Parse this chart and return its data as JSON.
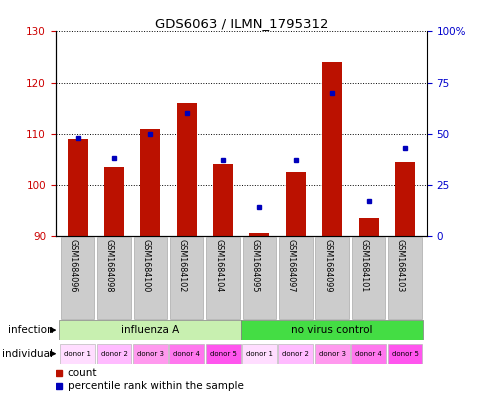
{
  "title": "GDS6063 / ILMN_1795312",
  "samples": [
    "GSM1684096",
    "GSM1684098",
    "GSM1684100",
    "GSM1684102",
    "GSM1684104",
    "GSM1684095",
    "GSM1684097",
    "GSM1684099",
    "GSM1684101",
    "GSM1684103"
  ],
  "count_values": [
    109,
    103.5,
    111,
    116,
    104,
    90.5,
    102.5,
    124,
    93.5,
    104.5
  ],
  "percentile_values": [
    48,
    38,
    50,
    60,
    37,
    14,
    37,
    70,
    17,
    43
  ],
  "ylim_left": [
    90,
    130
  ],
  "ylim_right": [
    0,
    100
  ],
  "yticks_left": [
    90,
    100,
    110,
    120,
    130
  ],
  "yticks_right": [
    0,
    25,
    50,
    75,
    100
  ],
  "ytick_labels_right": [
    "0",
    "25",
    "50",
    "75",
    "100%"
  ],
  "infection_groups": [
    {
      "label": "influenza A",
      "start": 0,
      "end": 5,
      "color": "#c8f0b0"
    },
    {
      "label": "no virus control",
      "start": 5,
      "end": 10,
      "color": "#44dd44"
    }
  ],
  "individual_labels": [
    "donor 1",
    "donor 2",
    "donor 3",
    "donor 4",
    "donor 5",
    "donor 1",
    "donor 2",
    "donor 3",
    "donor 4",
    "donor 5"
  ],
  "ind_colors": [
    "#ffddff",
    "#ffbbff",
    "#ff99ee",
    "#ff77ee",
    "#ff55ee",
    "#ffddff",
    "#ffbbff",
    "#ff99ee",
    "#ff77ee",
    "#ff55ee"
  ],
  "bar_color": "#bb1100",
  "dot_color": "#0000bb",
  "base_value": 90,
  "bar_width": 0.55,
  "tick_color_left": "#cc0000",
  "tick_color_right": "#0000cc",
  "xtick_bg": "#cccccc"
}
